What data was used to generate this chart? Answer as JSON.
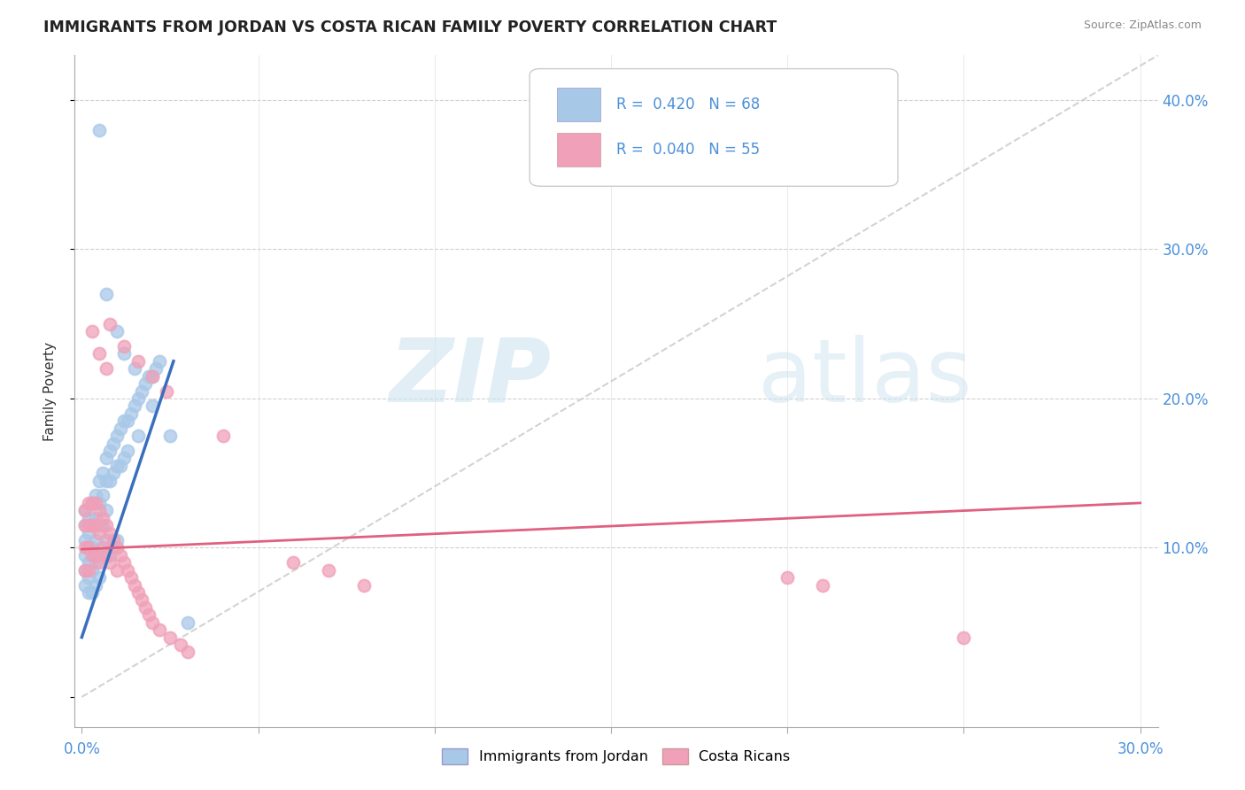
{
  "title": "IMMIGRANTS FROM JORDAN VS COSTA RICAN FAMILY POVERTY CORRELATION CHART",
  "source": "Source: ZipAtlas.com",
  "ylabel": "Family Poverty",
  "legend_label1": "Immigrants from Jordan",
  "legend_label2": "Costa Ricans",
  "r1": 0.42,
  "n1": 68,
  "r2": 0.04,
  "n2": 55,
  "xlim": [
    -0.002,
    0.305
  ],
  "ylim": [
    -0.02,
    0.43
  ],
  "ytick_vals": [
    0.0,
    0.1,
    0.2,
    0.3,
    0.4
  ],
  "ytick_labels": [
    "",
    "10.0%",
    "20.0%",
    "30.0%",
    "40.0%"
  ],
  "xtick_vals": [
    0.0,
    0.05,
    0.1,
    0.15,
    0.2,
    0.25,
    0.3
  ],
  "color_blue": "#a8c8e8",
  "color_pink": "#f0a0b8",
  "line_blue": "#3a6fbd",
  "line_pink": "#e06080",
  "line_diag": "#c8c8c8",
  "watermark_zip": "ZIP",
  "watermark_atlas": "atlas",
  "bg_color": "#ffffff",
  "blue_x": [
    0.001,
    0.001,
    0.001,
    0.001,
    0.001,
    0.001,
    0.002,
    0.002,
    0.002,
    0.002,
    0.002,
    0.002,
    0.003,
    0.003,
    0.003,
    0.003,
    0.003,
    0.004,
    0.004,
    0.004,
    0.004,
    0.004,
    0.005,
    0.005,
    0.005,
    0.005,
    0.005,
    0.006,
    0.006,
    0.006,
    0.006,
    0.007,
    0.007,
    0.007,
    0.007,
    0.008,
    0.008,
    0.008,
    0.009,
    0.009,
    0.009,
    0.01,
    0.01,
    0.01,
    0.011,
    0.011,
    0.012,
    0.012,
    0.013,
    0.013,
    0.014,
    0.015,
    0.016,
    0.016,
    0.017,
    0.018,
    0.019,
    0.02,
    0.021,
    0.022,
    0.005,
    0.007,
    0.01,
    0.012,
    0.015,
    0.02,
    0.025,
    0.03
  ],
  "blue_y": [
    0.125,
    0.115,
    0.105,
    0.095,
    0.085,
    0.075,
    0.12,
    0.11,
    0.1,
    0.09,
    0.08,
    0.07,
    0.13,
    0.115,
    0.1,
    0.085,
    0.07,
    0.135,
    0.12,
    0.105,
    0.09,
    0.075,
    0.145,
    0.13,
    0.115,
    0.095,
    0.08,
    0.15,
    0.135,
    0.115,
    0.095,
    0.16,
    0.145,
    0.125,
    0.105,
    0.165,
    0.145,
    0.095,
    0.17,
    0.15,
    0.1,
    0.175,
    0.155,
    0.105,
    0.18,
    0.155,
    0.185,
    0.16,
    0.185,
    0.165,
    0.19,
    0.195,
    0.2,
    0.175,
    0.205,
    0.21,
    0.215,
    0.215,
    0.22,
    0.225,
    0.38,
    0.27,
    0.245,
    0.23,
    0.22,
    0.195,
    0.175,
    0.05
  ],
  "pink_x": [
    0.001,
    0.001,
    0.001,
    0.001,
    0.002,
    0.002,
    0.002,
    0.002,
    0.003,
    0.003,
    0.003,
    0.004,
    0.004,
    0.004,
    0.005,
    0.005,
    0.005,
    0.006,
    0.006,
    0.007,
    0.007,
    0.008,
    0.008,
    0.009,
    0.01,
    0.01,
    0.011,
    0.012,
    0.013,
    0.014,
    0.015,
    0.016,
    0.017,
    0.018,
    0.019,
    0.02,
    0.022,
    0.025,
    0.028,
    0.03,
    0.008,
    0.012,
    0.016,
    0.02,
    0.024,
    0.04,
    0.06,
    0.07,
    0.08,
    0.2,
    0.21,
    0.25,
    0.003,
    0.005,
    0.007
  ],
  "pink_y": [
    0.125,
    0.115,
    0.1,
    0.085,
    0.13,
    0.115,
    0.1,
    0.085,
    0.13,
    0.115,
    0.095,
    0.13,
    0.115,
    0.095,
    0.125,
    0.11,
    0.09,
    0.12,
    0.1,
    0.115,
    0.095,
    0.11,
    0.09,
    0.105,
    0.1,
    0.085,
    0.095,
    0.09,
    0.085,
    0.08,
    0.075,
    0.07,
    0.065,
    0.06,
    0.055,
    0.05,
    0.045,
    0.04,
    0.035,
    0.03,
    0.25,
    0.235,
    0.225,
    0.215,
    0.205,
    0.175,
    0.09,
    0.085,
    0.075,
    0.08,
    0.075,
    0.04,
    0.245,
    0.23,
    0.22
  ],
  "blue_line_x": [
    0.0,
    0.026
  ],
  "blue_line_y": [
    0.04,
    0.225
  ],
  "pink_line_x": [
    0.0,
    0.3
  ],
  "pink_line_y": [
    0.099,
    0.13
  ]
}
